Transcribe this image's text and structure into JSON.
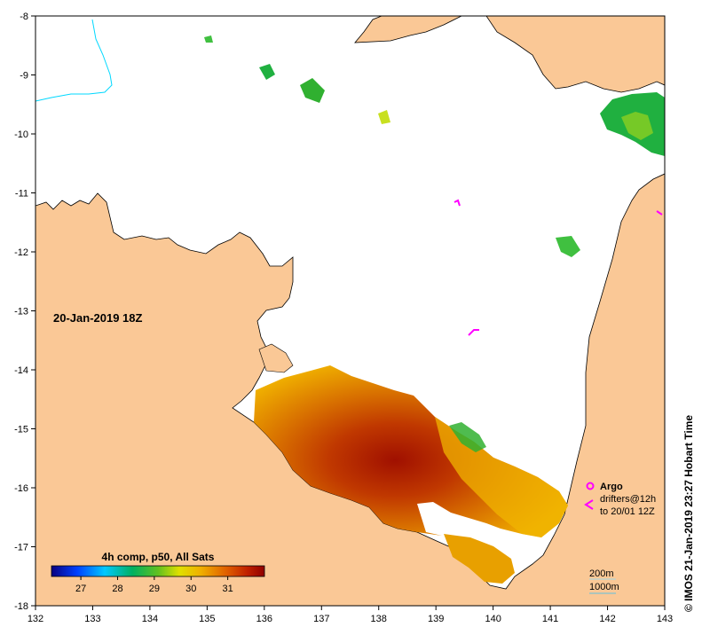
{
  "map": {
    "date_label": "20-Jan-2019 18Z",
    "credit": "© IMOS 21-Jan-2019 23:27 Hobart Time",
    "lon_ticks": [
      "132",
      "133",
      "134",
      "135",
      "136",
      "137",
      "138",
      "139",
      "140",
      "141",
      "142",
      "143"
    ],
    "lat_ticks": [
      "-8",
      "-9",
      "-10",
      "-11",
      "-12",
      "-13",
      "-14",
      "-15",
      "-16",
      "-17",
      "-18"
    ],
    "colorbar": {
      "title": "4h comp, p50, All Sats",
      "ticks": [
        "27",
        "28",
        "29",
        "30",
        "31"
      ],
      "range": [
        26.2,
        32
      ]
    },
    "legend": {
      "argo_label": "Argo",
      "drifters_line1": "drifters@12h",
      "drifters_line2": "to 20/01 12Z",
      "argo_color": "#ff00ff"
    },
    "depth_legend": {
      "contour_200": "200m",
      "contour_1000": "1000m"
    },
    "colors": {
      "land": "#fac896",
      "water": "#ffffff",
      "river": "#00d8ff"
    }
  }
}
